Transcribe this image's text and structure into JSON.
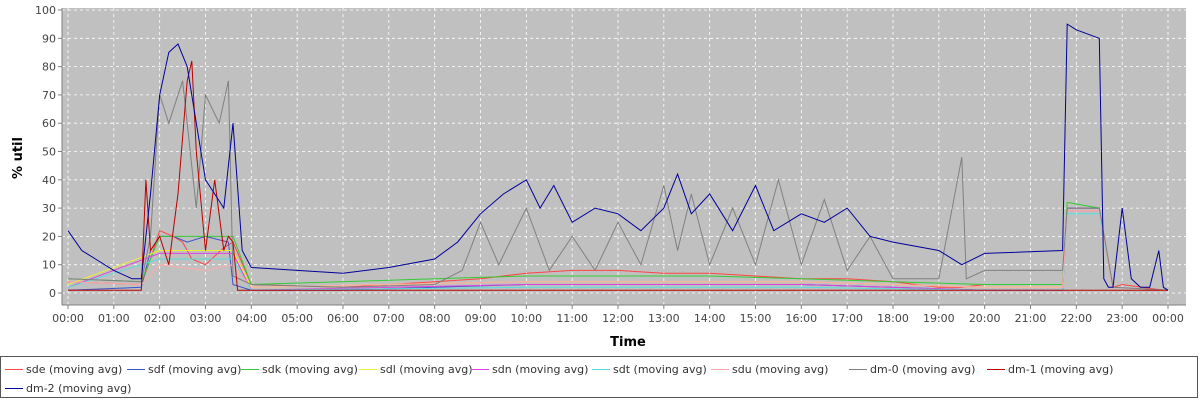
{
  "chart_data": {
    "type": "line",
    "xlabel": "Time",
    "ylabel": "% util",
    "ylim": [
      0,
      100
    ],
    "xlim_hours": [
      0,
      24
    ],
    "yticks": [
      0,
      10,
      20,
      30,
      40,
      50,
      60,
      70,
      80,
      90,
      100
    ],
    "xticks": [
      "00:00",
      "01:00",
      "02:00",
      "03:00",
      "04:00",
      "05:00",
      "06:00",
      "07:00",
      "08:00",
      "09:00",
      "10:00",
      "11:00",
      "12:00",
      "13:00",
      "14:00",
      "15:00",
      "16:00",
      "17:00",
      "18:00",
      "19:00",
      "20:00",
      "21:00",
      "22:00",
      "23:00",
      "00:00"
    ],
    "grid": true,
    "legend_position": "bottom",
    "x_units": "hours",
    "series": [
      {
        "name": "sde (moving avg)",
        "color": "#ff4444",
        "x": [
          0,
          1.6,
          1.8,
          2.0,
          2.3,
          2.5,
          2.7,
          3.0,
          3.4,
          3.6,
          4,
          6,
          8,
          9,
          10,
          11,
          12,
          13,
          14,
          15,
          16,
          17,
          18,
          19,
          19.5,
          20,
          21.7,
          21.8,
          22,
          22.5,
          22.8,
          23,
          23.9,
          24
        ],
        "y": [
          4,
          3,
          12,
          22,
          20,
          18,
          12,
          10,
          16,
          18,
          3,
          2,
          4,
          5,
          7,
          8,
          8,
          7,
          7,
          6,
          5,
          5,
          4,
          2,
          2,
          3,
          3,
          30,
          30,
          30,
          2,
          3,
          1,
          1
        ]
      },
      {
        "name": "sdf (moving avg)",
        "color": "#3a55c8",
        "x": [
          0,
          1.6,
          1.8,
          2.0,
          2.3,
          2.6,
          3.0,
          3.5,
          3.6,
          4,
          6,
          8,
          10,
          12,
          14,
          16,
          18,
          20,
          21.7,
          21.8,
          22.5,
          22.8,
          24
        ],
        "y": [
          1,
          2,
          15,
          20,
          20,
          18,
          20,
          18,
          3,
          1,
          1,
          2,
          3,
          3,
          3,
          3,
          2,
          1,
          1,
          30,
          30,
          1,
          1
        ]
      },
      {
        "name": "sdk (moving avg)",
        "color": "#33cc33",
        "x": [
          0,
          1.6,
          2.0,
          2.5,
          3.0,
          3.6,
          4,
          8,
          10,
          12,
          14,
          16,
          18,
          20,
          21.7,
          21.8,
          22.5,
          22.8,
          24
        ],
        "y": [
          5,
          4,
          20,
          20,
          20,
          20,
          3,
          5,
          6,
          6,
          6,
          5,
          4,
          3,
          3,
          32,
          30,
          1,
          1
        ]
      },
      {
        "name": "sdl (moving avg)",
        "color": "#eeee33",
        "x": [
          0,
          2,
          3,
          3.6,
          4,
          10,
          16,
          20,
          21.7,
          21.8,
          22.5,
          22.8,
          24
        ],
        "y": [
          3,
          15,
          15,
          15,
          2,
          4,
          4,
          2,
          2,
          29,
          29,
          1,
          1
        ]
      },
      {
        "name": "sdn (moving avg)",
        "color": "#dd44dd",
        "x": [
          0,
          2,
          3,
          3.6,
          4,
          10,
          16,
          20,
          21.7,
          21.8,
          22.5,
          22.8,
          24
        ],
        "y": [
          2,
          14,
          14,
          14,
          1,
          3,
          3,
          1,
          1,
          29,
          29,
          1,
          1
        ]
      },
      {
        "name": "sdt (moving avg)",
        "color": "#55dddd",
        "x": [
          0,
          2,
          3,
          3.6,
          4,
          10,
          16,
          20,
          21.7,
          21.8,
          22.5,
          22.8,
          24
        ],
        "y": [
          2,
          12,
          12,
          12,
          1,
          2,
          2,
          1,
          1,
          28,
          28,
          1,
          1
        ]
      },
      {
        "name": "sdu (moving avg)",
        "color": "#ffaaaa",
        "x": [
          0,
          1.6,
          2,
          3,
          3.6,
          4,
          10,
          16,
          20,
          21.7,
          21.8,
          22.5,
          22.8,
          24
        ],
        "y": [
          4,
          3,
          10,
          8,
          10,
          2,
          4,
          4,
          2,
          2,
          29,
          29,
          1,
          1
        ]
      },
      {
        "name": "dm-0 (moving avg)",
        "color": "#808080",
        "x": [
          0,
          1.6,
          1.8,
          2.0,
          2.2,
          2.5,
          2.8,
          3.0,
          3.3,
          3.5,
          3.6,
          4,
          6,
          8,
          8.6,
          9,
          9.4,
          10,
          10.5,
          11,
          11.5,
          12,
          12.5,
          13,
          13.3,
          13.6,
          14,
          14.5,
          15,
          15.5,
          16,
          16.5,
          17,
          17.5,
          18,
          19,
          19.5,
          19.6,
          20,
          21.7,
          21.8,
          22.5,
          22.8,
          24
        ],
        "y": [
          5,
          4,
          20,
          70,
          60,
          75,
          30,
          70,
          60,
          75,
          6,
          3,
          2,
          3,
          8,
          25,
          10,
          30,
          8,
          20,
          8,
          25,
          10,
          38,
          15,
          35,
          10,
          30,
          10,
          40,
          10,
          33,
          8,
          20,
          5,
          5,
          48,
          5,
          8,
          8,
          30,
          30,
          2,
          1
        ]
      },
      {
        "name": "dm-1 (moving avg)",
        "color": "#bb0000",
        "x": [
          0,
          1.6,
          1.7,
          1.8,
          2.0,
          2.2,
          2.4,
          2.6,
          2.7,
          2.8,
          3.0,
          3.2,
          3.4,
          3.5,
          3.6,
          3.7,
          4,
          6,
          9,
          10,
          11,
          12,
          13,
          14,
          15,
          18,
          20,
          21.7,
          21.8,
          22.5,
          22.8,
          24
        ],
        "y": [
          1,
          1,
          40,
          15,
          20,
          10,
          35,
          75,
          82,
          50,
          15,
          40,
          15,
          20,
          18,
          1,
          1,
          1,
          1,
          1,
          1,
          1,
          1,
          1,
          1,
          1,
          1,
          1,
          1,
          1,
          1,
          1
        ]
      },
      {
        "name": "dm-2 (moving avg)",
        "color": "#000099",
        "x": [
          0,
          0.3,
          0.6,
          1.0,
          1.4,
          1.6,
          1.8,
          2.0,
          2.2,
          2.4,
          2.6,
          2.8,
          3.0,
          3.2,
          3.4,
          3.6,
          3.8,
          4,
          5,
          6,
          7,
          8,
          8.5,
          9,
          9.5,
          10,
          10.3,
          10.6,
          11,
          11.5,
          12,
          12.5,
          13,
          13.3,
          13.6,
          14,
          14.5,
          15,
          15.4,
          16,
          16.5,
          17,
          17.5,
          18,
          19,
          19.5,
          20,
          21.7,
          21.8,
          22.0,
          22.5,
          22.6,
          22.7,
          22.8,
          23,
          23.2,
          23.4,
          23.6,
          23.8,
          23.9,
          24
        ],
        "y": [
          22,
          15,
          12,
          8,
          5,
          5,
          35,
          70,
          85,
          88,
          80,
          60,
          40,
          35,
          30,
          60,
          15,
          9,
          8,
          7,
          9,
          12,
          18,
          28,
          35,
          40,
          30,
          38,
          25,
          30,
          28,
          22,
          30,
          42,
          28,
          35,
          22,
          38,
          22,
          28,
          25,
          30,
          20,
          18,
          15,
          10,
          14,
          15,
          95,
          93,
          90,
          5,
          2,
          2,
          30,
          5,
          2,
          2,
          15,
          2,
          1
        ]
      }
    ]
  }
}
